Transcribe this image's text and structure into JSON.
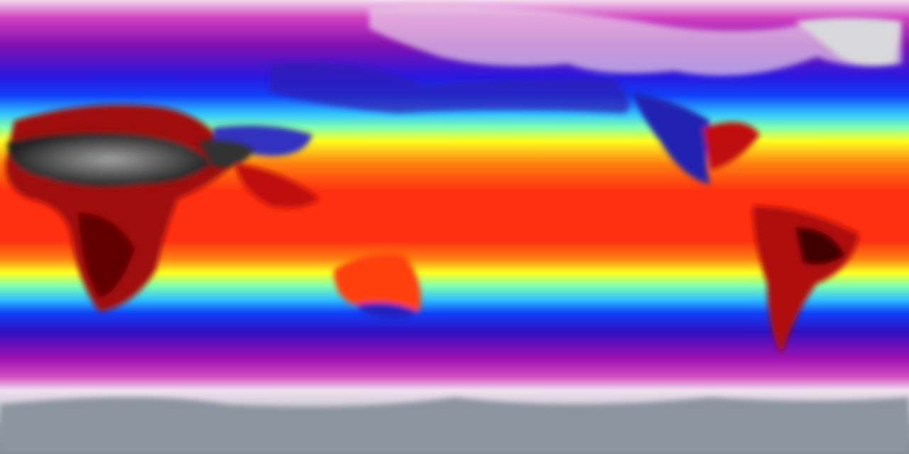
{
  "map": {
    "projection": "equirectangular",
    "variable_colors": {
      "polar_cold": "#8a909c",
      "very_cold": "#f2e6f2",
      "cold": "#c020b0",
      "cool": "#5010c0",
      "mild_cool": "#1020f0",
      "mild": "#40d0ff",
      "warm": "#ffff20",
      "hot": "#ff3010",
      "very_hot": "#a00000",
      "extreme": "#303030"
    }
  }
}
